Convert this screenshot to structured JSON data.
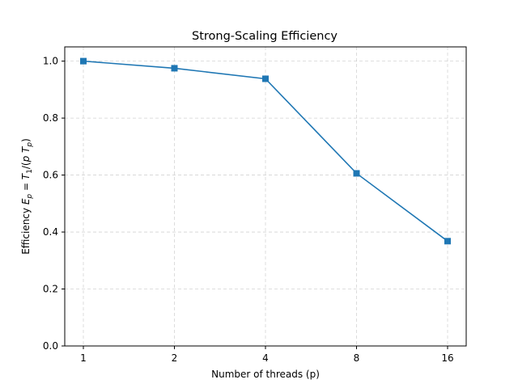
{
  "chart_data": {
    "type": "line",
    "title": "Strong-Scaling Efficiency",
    "xlabel": "Number of threads (p)",
    "ylabel": "Efficiency E_p = T_1/(p T_p)",
    "x_scale": "log2",
    "categories": [
      "1",
      "2",
      "4",
      "8",
      "16"
    ],
    "x": [
      1,
      2,
      4,
      8,
      16
    ],
    "series": [
      {
        "values": [
          1.0,
          0.975,
          0.938,
          0.606,
          0.368
        ],
        "color": "#1f77b4",
        "marker": "square"
      }
    ],
    "ylim": [
      0,
      1.05
    ],
    "yticks": [
      0.0,
      0.2,
      0.4,
      0.6,
      0.8,
      1.0
    ],
    "ytick_labels": [
      "0.0",
      "0.2",
      "0.4",
      "0.6",
      "0.8",
      "1.0"
    ],
    "grid": true,
    "legend": false
  }
}
